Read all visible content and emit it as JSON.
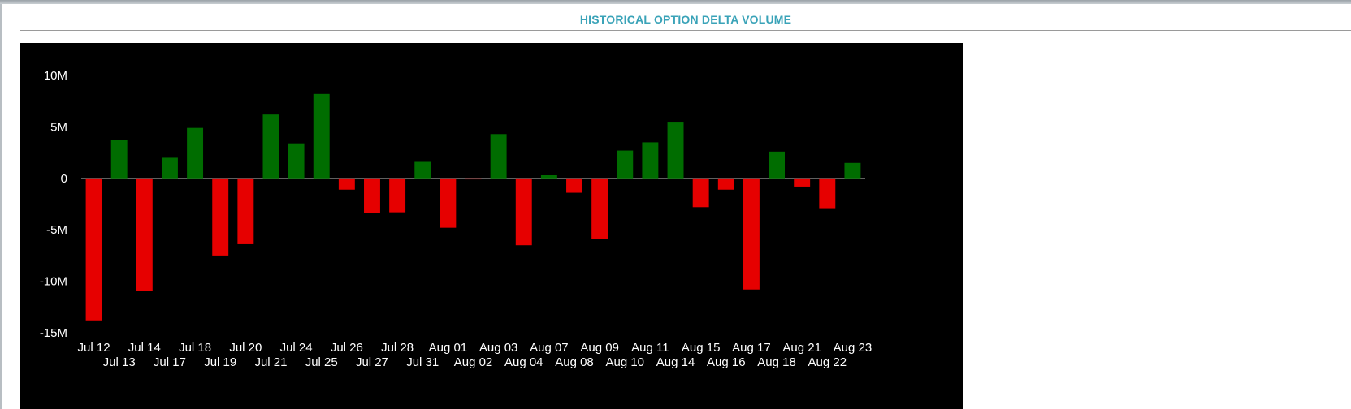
{
  "panel": {
    "title": "HISTORICAL OPTION DELTA VOLUME"
  },
  "colors": {
    "title": "#3aa3b8",
    "chart_background": "#000000",
    "positive_bar": "#006d00",
    "negative_bar": "#e60000",
    "zero_line": "#808080",
    "text": "#ffffff"
  },
  "chart_data": {
    "type": "bar",
    "title": "HISTORICAL OPTION DELTA VOLUME",
    "xlabel": "",
    "ylabel": "",
    "ylim": [
      -15000000,
      10000000
    ],
    "yticks": [
      {
        "value": 10000000,
        "label": "10M"
      },
      {
        "value": 5000000,
        "label": "5M"
      },
      {
        "value": 0,
        "label": "0"
      },
      {
        "value": -5000000,
        "label": "-5M"
      },
      {
        "value": -10000000,
        "label": "-10M"
      },
      {
        "value": -15000000,
        "label": "-15M"
      }
    ],
    "grid": false,
    "legend": "none",
    "categories": [
      "Jul 12",
      "Jul 13",
      "Jul 14",
      "Jul 17",
      "Jul 18",
      "Jul 19",
      "Jul 20",
      "Jul 21",
      "Jul 24",
      "Jul 25",
      "Jul 26",
      "Jul 27",
      "Jul 28",
      "Jul 31",
      "Aug 01",
      "Aug 02",
      "Aug 03",
      "Aug 04",
      "Aug 07",
      "Aug 08",
      "Aug 09",
      "Aug 10",
      "Aug 11",
      "Aug 14",
      "Aug 15",
      "Aug 16",
      "Aug 17",
      "Aug 18",
      "Aug 21",
      "Aug 22",
      "Aug 23"
    ],
    "values": [
      -13800000,
      3700000,
      -10900000,
      2000000,
      4900000,
      -7500000,
      -6400000,
      6200000,
      3400000,
      8200000,
      -1100000,
      -3400000,
      -3300000,
      1600000,
      -4800000,
      -100000,
      4300000,
      -6500000,
      300000,
      -1400000,
      -5900000,
      2700000,
      3500000,
      5500000,
      -2800000,
      -1100000,
      -10800000,
      2600000,
      -800000,
      -2900000,
      1500000
    ]
  }
}
